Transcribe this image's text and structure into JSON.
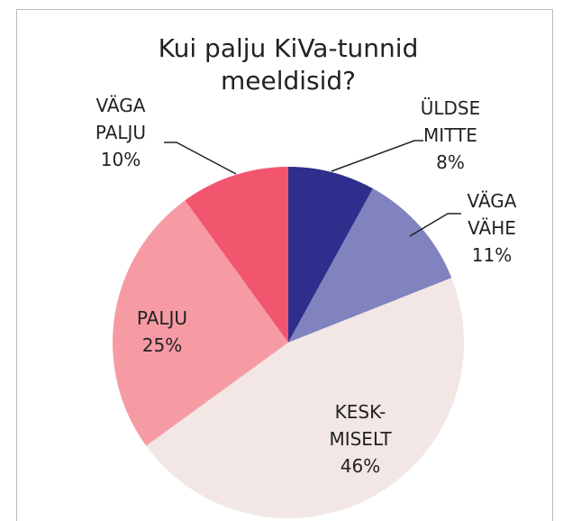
{
  "chart_data": {
    "type": "pie",
    "title": "Kui palju KiVa-tunnid meeldisid?",
    "categories": [
      "ÜLDSE\nMITTE",
      "VÄGA\nVÄHE",
      "KESK-\nMISELT",
      "PALJU",
      "VÄGA\nPALJU"
    ],
    "values": [
      8,
      11,
      46,
      25,
      10
    ],
    "value_labels": [
      "8%",
      "11%",
      "46%",
      "25%",
      "10%"
    ],
    "colors": [
      "#2e2f8c",
      "#8083be",
      "#f2e7e5",
      "#f69ba4",
      "#f2566f"
    ]
  }
}
